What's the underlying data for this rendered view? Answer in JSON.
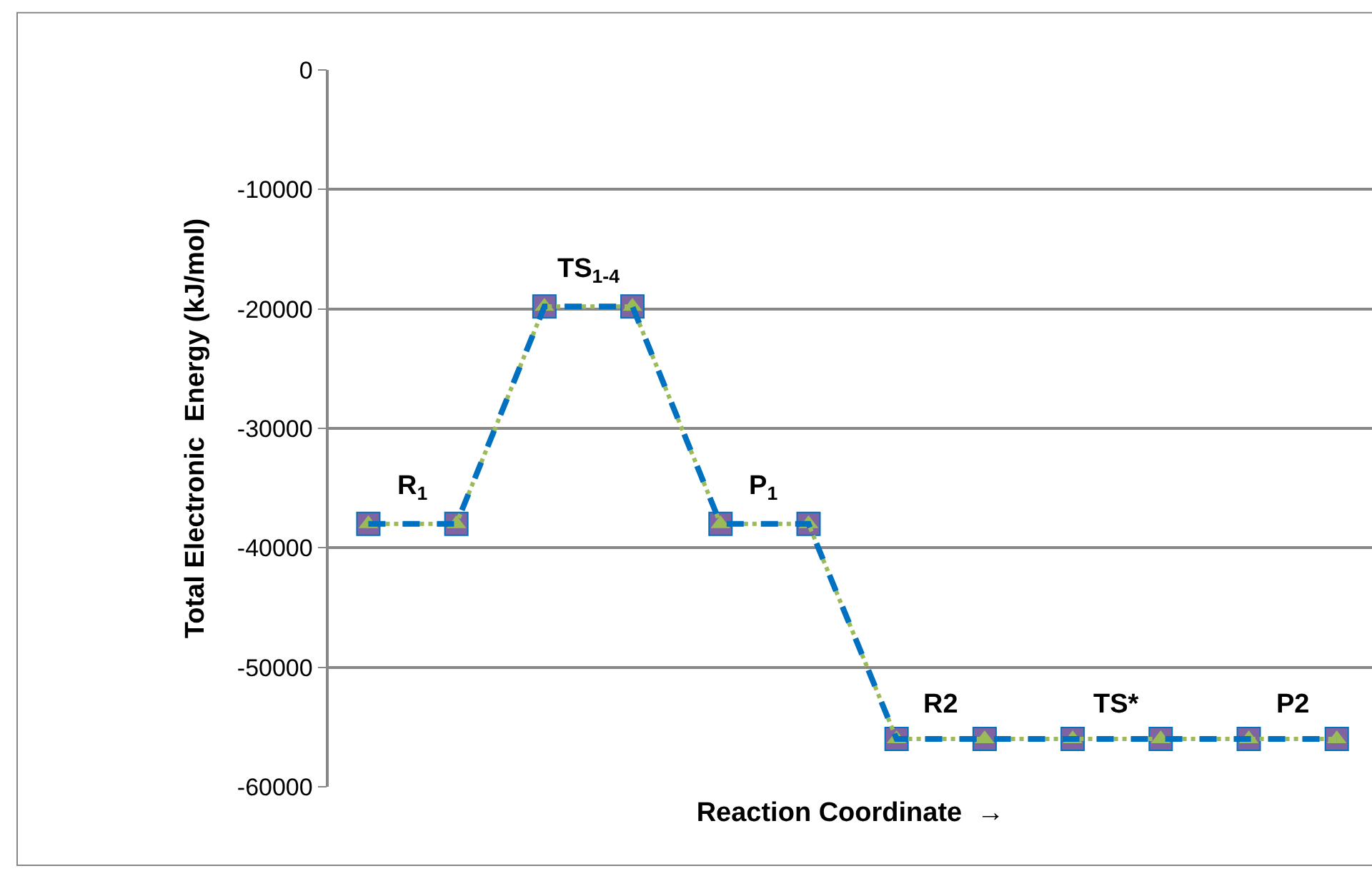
{
  "chart_data": {
    "type": "line",
    "xlabel": "Reaction Coordinate  →",
    "ylabel": "Total Electronic  Energy (kJ/mol)",
    "categories": [
      null,
      null,
      null,
      null,
      null,
      null,
      null,
      null,
      null,
      null,
      null,
      null
    ],
    "series": [
      {
        "color": "#0070c0",
        "line_style": "dashed",
        "marker": "none",
        "values": [
          -38000,
          -38000,
          -19800,
          -19800,
          -38000,
          -38000,
          -56000,
          -56000,
          -56000,
          -56000,
          -56000,
          -56000
        ]
      },
      {
        "color": "#9bbb59",
        "line_style": "dotted",
        "marker": "triangle",
        "values": [
          -38000,
          -38000,
          -19800,
          -19800,
          -38000,
          -38000,
          -56000,
          -56000,
          -56000,
          -56000,
          -56000,
          -56000
        ]
      },
      {
        "type": "scatter",
        "color": "#8064a2",
        "marker": "square",
        "values": [
          -38000,
          -38000,
          -19800,
          -19800,
          -38000,
          -38000,
          -56000,
          -56000,
          -56000,
          -56000,
          -56000,
          -56000
        ]
      }
    ],
    "ylim": [
      -60000,
      0
    ],
    "yticks": [
      -60000,
      -50000,
      -40000,
      -30000,
      -20000,
      -10000,
      0
    ],
    "grid": "y",
    "legend": false,
    "tick_labels": "y",
    "annotations": [
      "R$_{1}$",
      "TS$_{1-4}$",
      "P$_{1}$",
      "R2",
      "TS*",
      "P2"
    ]
  }
}
